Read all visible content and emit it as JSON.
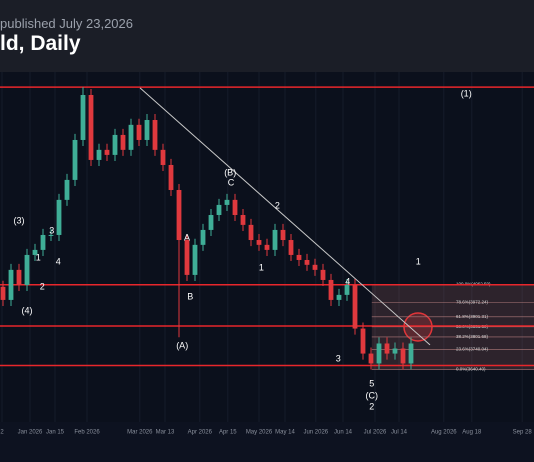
{
  "header": {
    "published": "published July 23,2026",
    "title": "ld, Daily"
  },
  "chart_data": {
    "type": "candlestick",
    "up_color": "#3fae97",
    "down_color": "#e0393e",
    "open": [
      4050,
      3985,
      4134,
      4059,
      4208,
      4233,
      4307,
      4307,
      4481,
      4580,
      4778,
      5001,
      4679,
      4729,
      4704,
      4803,
      4729,
      4853,
      4778,
      4877,
      4729,
      4654,
      4530,
      4282,
      4109,
      4258,
      4332,
      4406,
      4456,
      4481,
      4406,
      4357,
      4282,
      4258,
      4233,
      4332,
      4282,
      4208,
      4183,
      4159,
      4134,
      4084,
      3985,
      4010,
      4059,
      3843,
      3719,
      3670,
      3769,
      3719,
      3744,
      3670
    ],
    "high": [
      4080,
      4164,
      4164,
      4238,
      4263,
      4337,
      4337,
      4511,
      4610,
      4808,
      5040,
      5031,
      4759,
      4759,
      4833,
      4833,
      4883,
      4883,
      4907,
      4907,
      4759,
      4684,
      4560,
      4312,
      4288,
      4362,
      4436,
      4486,
      4511,
      4511,
      4436,
      4387,
      4312,
      4288,
      4362,
      4362,
      4312,
      4238,
      4213,
      4189,
      4164,
      4114,
      4040,
      4089,
      4089,
      3873,
      3749,
      3799,
      3799,
      3774,
      3774,
      3799
    ],
    "low": [
      3955,
      3955,
      4029,
      4029,
      4178,
      4203,
      4277,
      4277,
      4451,
      4550,
      4748,
      4649,
      4649,
      4674,
      4674,
      4699,
      4699,
      4748,
      4748,
      4699,
      4624,
      4500,
      3800,
      4079,
      4079,
      4228,
      4302,
      4376,
      4426,
      4376,
      4327,
      4252,
      4228,
      4203,
      4203,
      4252,
      4178,
      4153,
      4129,
      4104,
      4054,
      3955,
      3955,
      3980,
      3813,
      3689,
      3640,
      3640,
      3689,
      3689,
      3640,
      3640
    ],
    "close": [
      3985,
      4134,
      4059,
      4208,
      4233,
      4307,
      4307,
      4481,
      4580,
      4778,
      5001,
      4679,
      4729,
      4704,
      4803,
      4729,
      4853,
      4778,
      4877,
      4729,
      4654,
      4530,
      4282,
      4109,
      4258,
      4332,
      4406,
      4456,
      4481,
      4406,
      4357,
      4282,
      4258,
      4233,
      4332,
      4282,
      4208,
      4183,
      4159,
      4134,
      4084,
      3985,
      4010,
      4059,
      3843,
      3719,
      3670,
      3769,
      3719,
      3744,
      3670,
      3769
    ],
    "xlim": [
      -0.375,
      66.375
    ],
    "ylim": [
      3350,
      5115
    ],
    "xticks": [
      {
        "value": -0.125,
        "label": "2"
      },
      {
        "value": 3.375,
        "label": "Jan 2026"
      },
      {
        "value": 6.5,
        "label": "Jan 15"
      },
      {
        "value": 10.5,
        "label": "Feb 2026"
      },
      {
        "value": 17.1,
        "label": "Mar 2026"
      },
      {
        "value": 20.25,
        "label": "Mar 13"
      },
      {
        "value": 24.6,
        "label": "Apr 2026"
      },
      {
        "value": 28.1,
        "label": "Apr 15"
      },
      {
        "value": 32,
        "label": "May 2026"
      },
      {
        "value": 35.25,
        "label": "May 14"
      },
      {
        "value": 39.1,
        "label": "Jun 2026"
      },
      {
        "value": 42.5,
        "label": "Jun 14"
      },
      {
        "value": 46.5,
        "label": "Jul 2026"
      },
      {
        "value": 49.5,
        "label": "Jul 14"
      },
      {
        "value": 55.1,
        "label": "Aug 2026"
      },
      {
        "value": 58.6,
        "label": "Aug 18"
      },
      {
        "value": 64.9,
        "label": "Sep 28"
      }
    ],
    "levels": [
      5040,
      4060,
      3856,
      3660
    ],
    "level_color": "#e8262b",
    "trendline": {
      "x": [
        17.125,
        53.375
      ],
      "y": [
        5036,
        3762
      ]
    },
    "fib_start": 46.1,
    "fib": [
      {
        "value": 4062.59,
        "label": "100.0%(4062.59)"
      },
      {
        "value": 3972.24,
        "label": "78.6%(3972.24)"
      },
      {
        "value": 3901.31,
        "label": "61.8%(3901.31)"
      },
      {
        "value": 3851.5,
        "label": "50.0%(3851.50)"
      },
      {
        "value": 3801.68,
        "label": "38.2%(3801.68)"
      },
      {
        "value": 3740.04,
        "label": "23.6%(3740.04)"
      },
      {
        "value": 3640.4,
        "label": "0.0%(3640.40)"
      }
    ],
    "annotations": [
      {
        "text": "(3)",
        "x": 2.0,
        "y": 4376
      },
      {
        "text": "3",
        "x": 6.1,
        "y": 4327
      },
      {
        "text": "1",
        "x": 4.4,
        "y": 4193
      },
      {
        "text": "4",
        "x": 6.9,
        "y": 4173
      },
      {
        "text": "2",
        "x": 4.9,
        "y": 4049
      },
      {
        "text": "(4)",
        "x": 3.0,
        "y": 3930
      },
      {
        "text": "A",
        "x": 23.0,
        "y": 4292
      },
      {
        "text": "B",
        "x": 23.4,
        "y": 4000
      },
      {
        "text": "(A)",
        "x": 22.4,
        "y": 3757
      },
      {
        "text": "(B)",
        "x": 28.4,
        "y": 4614
      },
      {
        "text": "C",
        "x": 28.5,
        "y": 4565
      },
      {
        "text": "2",
        "x": 34.3,
        "y": 4451
      },
      {
        "text": "1",
        "x": 32.3,
        "y": 4143
      },
      {
        "text": "4",
        "x": 43.1,
        "y": 4074
      },
      {
        "text": "3",
        "x": 41.9,
        "y": 3692
      },
      {
        "text": "1",
        "x": 51.9,
        "y": 4173
      },
      {
        "text": "(1)",
        "x": 57.9,
        "y": 5006
      },
      {
        "text": "5",
        "x": 46.1,
        "y": 3568
      },
      {
        "text": "(C)",
        "x": 46.1,
        "y": 3509
      },
      {
        "text": "2",
        "x": 46.1,
        "y": 3454
      }
    ]
  }
}
